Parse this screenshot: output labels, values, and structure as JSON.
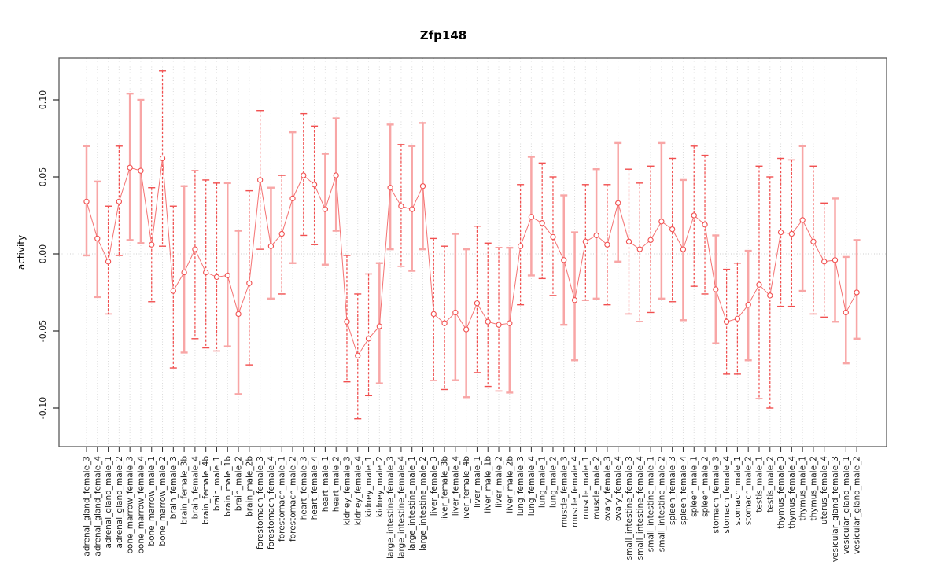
{
  "figure": {
    "title": "Zfp148",
    "ylabel": "activity"
  },
  "chart_data": {
    "type": "scatter",
    "subtype": "points-with-error-bars-connected-by-line",
    "title": "Zfp148",
    "xlabel": "",
    "ylabel": "activity",
    "ylim": [
      -0.125,
      0.128
    ],
    "yticks": [
      -0.1,
      -0.05,
      0.0,
      0.05,
      0.1
    ],
    "ytick_labels": [
      "-0.10",
      "-0.05",
      "0.00",
      "0.05",
      "0.10"
    ],
    "grid": {
      "vertical_dotted_per_category": true,
      "horizontal_dotted_zero_line": true
    },
    "legend": "none",
    "categories": [
      "adrenal_gland_female_3",
      "adrenal_gland_female_4",
      "adrenal_gland_male_1",
      "adrenal_gland_male_2",
      "bone_marrow_female_3",
      "bone_marrow_female_4",
      "bone_marrow_male_1",
      "bone_marrow_male_2",
      "brain_female_3",
      "brain_female_3b",
      "brain_female_4",
      "brain_female_4b",
      "brain_male_1",
      "brain_male_1b",
      "brain_male_2",
      "brain_male_2b",
      "forestomach_female_3",
      "forestomach_female_4",
      "forestomach_male_1",
      "forestomach_male_2",
      "heart_female_3",
      "heart_female_4",
      "heart_male_1",
      "heart_male_2",
      "kidney_female_3",
      "kidney_female_4",
      "kidney_male_1",
      "kidney_male_2",
      "large_intestine_female_3",
      "large_intestine_female_4",
      "large_intestine_male_1",
      "large_intestine_male_2",
      "liver_female_3",
      "liver_female_3b",
      "liver_female_4",
      "liver_female_4b",
      "liver_male_1",
      "liver_male_1b",
      "liver_male_2",
      "liver_male_2b",
      "lung_female_3",
      "lung_female_4",
      "lung_male_1",
      "lung_male_2",
      "muscle_female_3",
      "muscle_female_4",
      "muscle_male_1",
      "muscle_male_2",
      "ovary_female_3",
      "ovary_female_4",
      "small_intestine_female_3",
      "small_intestine_female_4",
      "small_intestine_male_1",
      "small_intestine_male_2",
      "spleen_female_3",
      "spleen_female_4",
      "spleen_male_1",
      "spleen_male_2",
      "stomach_female_3",
      "stomach_female_4",
      "stomach_male_1",
      "stomach_male_2",
      "testis_male_1",
      "testis_male_2",
      "thymus_female_3",
      "thymus_female_4",
      "thymus_male_1",
      "thymus_male_2",
      "uterus_female_4",
      "vesicular_gland_female_3",
      "vesicular_gland_male_1",
      "vesicular_gland_male_2"
    ],
    "series": [
      {
        "name": "activity",
        "values": [
          0.034,
          0.01,
          -0.005,
          0.034,
          0.056,
          0.054,
          0.006,
          0.062,
          -0.024,
          -0.012,
          0.003,
          -0.012,
          -0.015,
          -0.014,
          -0.039,
          -0.019,
          0.048,
          0.005,
          0.013,
          0.036,
          0.051,
          0.045,
          0.029,
          0.051,
          -0.044,
          -0.066,
          -0.055,
          -0.047,
          0.043,
          0.031,
          0.029,
          0.044,
          -0.039,
          -0.045,
          -0.038,
          -0.049,
          -0.032,
          -0.044,
          -0.046,
          -0.045,
          0.005,
          0.024,
          0.02,
          0.011,
          -0.004,
          -0.03,
          0.008,
          0.012,
          0.006,
          0.033,
          0.008,
          0.003,
          0.009,
          0.021,
          0.016,
          0.003,
          0.025,
          0.019,
          -0.023,
          -0.044,
          -0.042,
          -0.033,
          -0.02,
          -0.027,
          0.014,
          0.013,
          0.022,
          0.008,
          -0.005,
          -0.004,
          -0.038,
          -0.025
        ],
        "ci_high": [
          0.07,
          0.047,
          0.031,
          0.07,
          0.104,
          0.1,
          0.043,
          0.119,
          0.031,
          0.044,
          0.054,
          0.048,
          0.046,
          0.046,
          0.015,
          0.041,
          0.093,
          0.043,
          0.051,
          0.079,
          0.091,
          0.083,
          0.065,
          0.088,
          -0.001,
          -0.026,
          -0.013,
          -0.006,
          0.084,
          0.071,
          0.07,
          0.085,
          0.01,
          0.005,
          0.013,
          0.003,
          0.018,
          0.007,
          0.004,
          0.004,
          0.045,
          0.063,
          0.059,
          0.05,
          0.038,
          0.014,
          0.045,
          0.055,
          0.045,
          0.072,
          0.055,
          0.046,
          0.057,
          0.072,
          0.062,
          0.048,
          0.07,
          0.064,
          0.012,
          -0.01,
          -0.006,
          0.002,
          0.057,
          0.05,
          0.062,
          0.061,
          0.07,
          0.057,
          0.033,
          0.036,
          -0.002,
          0.009
        ],
        "ci_low": [
          -0.001,
          -0.028,
          -0.039,
          -0.001,
          0.009,
          0.007,
          -0.031,
          0.005,
          -0.074,
          -0.064,
          -0.055,
          -0.061,
          -0.063,
          -0.06,
          -0.091,
          -0.072,
          0.003,
          -0.029,
          -0.026,
          -0.006,
          0.012,
          0.006,
          -0.007,
          0.015,
          -0.083,
          -0.107,
          -0.092,
          -0.084,
          0.003,
          -0.008,
          -0.011,
          0.003,
          -0.082,
          -0.088,
          -0.082,
          -0.093,
          -0.077,
          -0.086,
          -0.089,
          -0.09,
          -0.033,
          -0.014,
          -0.016,
          -0.027,
          -0.046,
          -0.069,
          -0.03,
          -0.029,
          -0.033,
          -0.005,
          -0.039,
          -0.044,
          -0.038,
          -0.029,
          -0.031,
          -0.043,
          -0.021,
          -0.026,
          -0.058,
          -0.078,
          -0.078,
          -0.069,
          -0.094,
          -0.1,
          -0.034,
          -0.034,
          -0.024,
          -0.039,
          -0.041,
          -0.044,
          -0.071,
          -0.055
        ]
      }
    ],
    "bar_styles": [
      "L",
      "L",
      "D",
      "D",
      "L",
      "L",
      "D",
      "D",
      "D",
      "L",
      "D",
      "D",
      "D",
      "L",
      "L",
      "D",
      "D",
      "L",
      "D",
      "L",
      "D",
      "D",
      "L",
      "L",
      "D",
      "D",
      "D",
      "L",
      "L",
      "D",
      "L",
      "L",
      "D",
      "D",
      "L",
      "L",
      "D",
      "D",
      "D",
      "L",
      "D",
      "L",
      "D",
      "D",
      "L",
      "L",
      "D",
      "L",
      "D",
      "L",
      "D",
      "D",
      "D",
      "L",
      "D",
      "L",
      "D",
      "D",
      "L",
      "D",
      "D",
      "L",
      "D",
      "D",
      "D",
      "D",
      "L",
      "D",
      "D",
      "L",
      "L",
      "L"
    ],
    "colors": {
      "point_stroke": "#f14f4f",
      "dark_bar": "#f14f4f",
      "light_bar": "#f8a6a6",
      "connect_line": "#f47272",
      "grid": "#d9d9d9",
      "zero_line": "#cfcfcf",
      "frame": "#5a5a5a",
      "tick": "#2b2b2b",
      "label_text": "#1a1a1a"
    }
  }
}
